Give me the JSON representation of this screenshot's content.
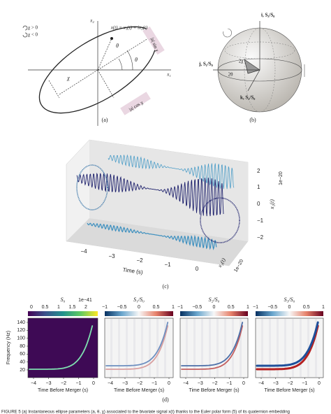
{
  "panel_a": {
    "legend": [
      "χ > 0",
      "χ < 0"
    ],
    "x2_label": "x₂",
    "x1_label": "x₁",
    "signal_label": "x(t) = x₁(t) + ix₂(t)",
    "theta_labels": [
      "θ",
      "θ"
    ],
    "chi_label": "χ",
    "minor_axis_label": "|a| sin χ",
    "major_axis_label": "|a| cos χ",
    "caption": "(a)"
  },
  "panel_b": {
    "i_label": "i, S₃/S₀",
    "j_label": "j, S₁/S₀",
    "k_label": "k, S₂/S₀",
    "two_chi": "2χ",
    "two_theta": "2θ",
    "caption": "(b)"
  },
  "panel_c": {
    "time_label": "Time (s)",
    "time_ticks": [
      "−4",
      "−3",
      "−2",
      "−1",
      "0"
    ],
    "x2_ticks": [
      "2",
      "1",
      "0",
      "−1",
      "−2"
    ],
    "x2_label": "x₂(t)",
    "x2_scale": "1e−20",
    "x1_label": "x₁(t)",
    "x1_scale": "1e−20",
    "caption": "(c)"
  },
  "panel_d": {
    "titles": [
      "S₀",
      "S₁/S₀",
      "S₂/S₀",
      "S₃/S₀"
    ],
    "s0_ticks": [
      "0",
      "0.5",
      "1",
      "1.5",
      "2"
    ],
    "s0_scale": "1e−41",
    "ratio_ticks": [
      "−1",
      "−0.5",
      "0",
      "0.5",
      "1"
    ],
    "y_label": "Frequency (Hz)",
    "y_ticks": [
      "140",
      "120",
      "100",
      "80",
      "60",
      "40",
      "20"
    ],
    "x_ticks": [
      "−4",
      "−3",
      "−2",
      "−1",
      "0"
    ],
    "x_label": "Time Before Merger (s)",
    "caption": "(d)"
  },
  "caption": "FIGURE 5  (a) Instantaneous ellipse parameters (a, θ, χ) associated to the bivariate signal x(t) thanks to the Euler polar form (5) of its quaternion embedding"
}
